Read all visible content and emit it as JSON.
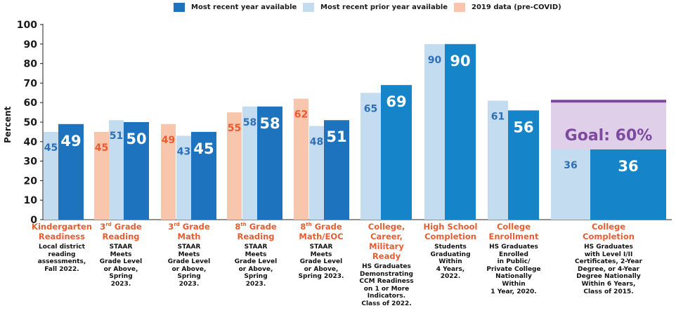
{
  "legend": [
    {
      "label": "Most recent year available",
      "color": "#1d73be"
    },
    {
      "label": "Most recent prior year available",
      "color": "#c3dcef"
    },
    {
      "label": "2019 data (pre-COVID)",
      "color": "#f7c6ad"
    }
  ],
  "colors": {
    "recent": "#1d73be",
    "recent_alt": "#1584c9",
    "prior": "#c3dcef",
    "precovid": "#f7c6ad",
    "title_orange": "#ea5b2f",
    "goal_fill": "#e0cfe8",
    "goal_line": "#7e4aa0",
    "prior_label": "#2e6fb6",
    "precovid_label": "#ea5b2f"
  },
  "chart_data": {
    "type": "bar",
    "ylabel": "Percent",
    "ylim": [
      0,
      100
    ],
    "yticks": [
      0,
      10,
      20,
      30,
      40,
      50,
      60,
      70,
      80,
      90,
      100
    ],
    "grid": false,
    "legend_position": "top",
    "categories": [
      {
        "title_html": "Kindergarten<br>Readiness",
        "desc_html": "Local district<br>reading<br>assessments,<br>Fall 2022.",
        "bars": [
          {
            "kind": "prior",
            "value": 45,
            "label": "45"
          },
          {
            "kind": "recent",
            "value": 49,
            "label": "49"
          }
        ]
      },
      {
        "title_html": "3<sup>rd</sup> Grade<br>Reading",
        "desc_html": "STAAR<br>Meets<br>Grade Level<br>or Above,<br>Spring<br>2023.",
        "bars": [
          {
            "kind": "precovid",
            "value": 45,
            "label": "45"
          },
          {
            "kind": "prior",
            "value": 51,
            "label": "51"
          },
          {
            "kind": "recent",
            "value": 50,
            "label": "50"
          }
        ]
      },
      {
        "title_html": "3<sup>rd</sup> Grade<br>Math",
        "desc_html": "STAAR<br>Meets<br>Grade Level<br>or Above,<br>Spring<br>2023.",
        "bars": [
          {
            "kind": "precovid",
            "value": 49,
            "label": "49"
          },
          {
            "kind": "prior",
            "value": 43,
            "label": "43"
          },
          {
            "kind": "recent",
            "value": 45,
            "label": "45"
          }
        ]
      },
      {
        "title_html": "8<sup>th</sup> Grade<br>Reading",
        "desc_html": "STAAR<br>Meets<br>Grade Level<br>or Above,<br>Spring<br>2023.",
        "bars": [
          {
            "kind": "precovid",
            "value": 55,
            "label": "55"
          },
          {
            "kind": "prior",
            "value": 58,
            "label": "58"
          },
          {
            "kind": "recent",
            "value": 58,
            "label": "58"
          }
        ]
      },
      {
        "title_html": "8<sup>th</sup> Grade<br>Math/EOC",
        "desc_html": "STAAR<br>Meets<br>Grade Level<br>or Above,<br>Spring 2023.",
        "bars": [
          {
            "kind": "precovid",
            "value": 62,
            "label": "62"
          },
          {
            "kind": "prior",
            "value": 48,
            "label": "48"
          },
          {
            "kind": "recent",
            "value": 51,
            "label": "51"
          }
        ]
      },
      {
        "title_html": "College,<br>Career,<br>Military<br>Ready",
        "desc_html": "HS Graduates<br>Demonstrating<br>CCM Readiness<br>on 1 or More<br>Indicators.<br>Class of 2022.",
        "bars": [
          {
            "kind": "prior",
            "value": 65,
            "label": "65"
          },
          {
            "kind": "recent",
            "value": 69,
            "label": "69"
          }
        ]
      },
      {
        "title_html": "High School<br>Completion",
        "desc_html": "Students<br>Graduating<br>Within<br>4 Years,<br>2022.",
        "bars": [
          {
            "kind": "prior",
            "value": 90,
            "label": "90"
          },
          {
            "kind": "recent",
            "value": 90,
            "label": "90"
          }
        ]
      },
      {
        "title_html": "College<br>Enrollment",
        "desc_html": "HS Graduates<br>Enrolled<br>in Public/<br>Private College<br>Nationally<br>Within<br>1 Year, 2020.",
        "bars": [
          {
            "kind": "prior",
            "value": 61,
            "label": "61"
          },
          {
            "kind": "recent",
            "value": 56,
            "label": "56"
          }
        ]
      },
      {
        "title_html": "College<br>Completion",
        "desc_html": "HS Graduates<br>with Level I/II<br>Certificates, 2-Year<br>Degree, or 4-Year<br>Degree Nationally<br>Within 6 Years,<br>Class of 2015.",
        "bars": [
          {
            "kind": "prior",
            "value": 36,
            "label": "36"
          },
          {
            "kind": "recent",
            "value": 36,
            "label": "36"
          }
        ],
        "goal": {
          "value": 60,
          "label": "Goal: 60%"
        }
      }
    ]
  }
}
